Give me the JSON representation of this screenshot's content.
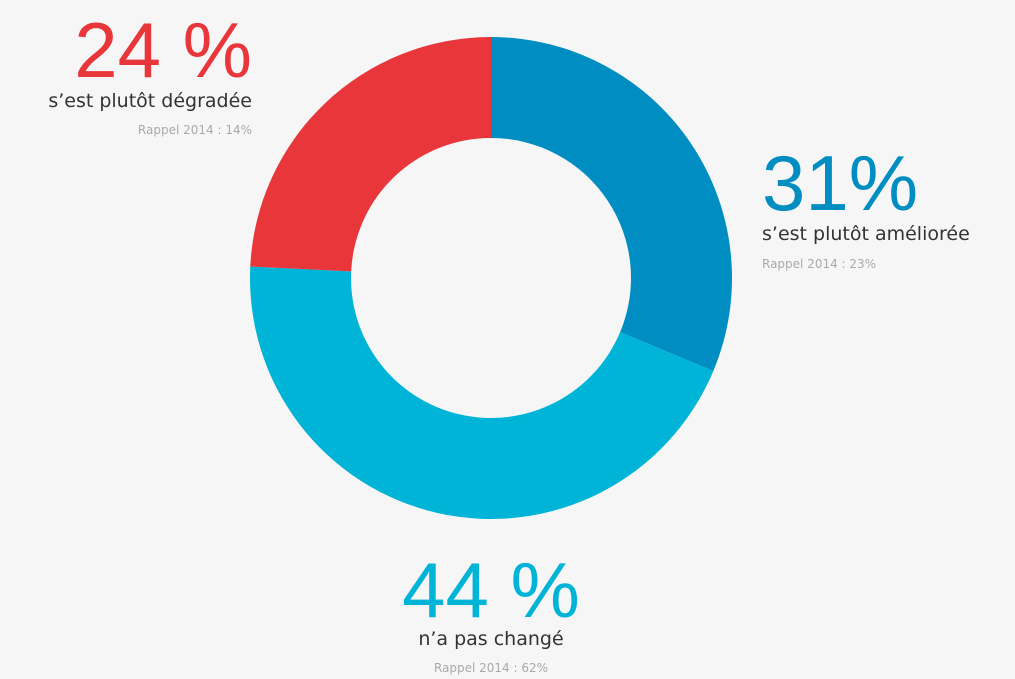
{
  "chart_data": {
    "type": "donut",
    "categories": [
      "s’est plutôt améliorée",
      "n’a pas changé",
      "s’est plutôt dégradée"
    ],
    "values": [
      31,
      44,
      24
    ],
    "value_labels": [
      "31%",
      "44 %",
      "24 %"
    ],
    "colors": [
      "#008ec2",
      "#00b4d8",
      "#e8363a"
    ],
    "annotations": [
      "Rappel 2014 : 23%",
      "Rappel 2014 : 62%",
      "Rappel 2014 : 14%"
    ]
  }
}
